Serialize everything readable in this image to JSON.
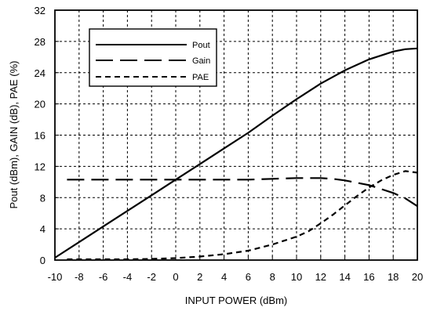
{
  "chart_data": {
    "type": "line",
    "title": "",
    "xlabel": "INPUT POWER (dBm)",
    "ylabel": "Pout (dBm), GAIN (dB), PAE (%)",
    "xlim": [
      -10,
      20
    ],
    "ylim": [
      0,
      32
    ],
    "xticks": [
      -10,
      -8,
      -6,
      -4,
      -2,
      0,
      2,
      4,
      6,
      8,
      10,
      12,
      14,
      16,
      18,
      20
    ],
    "yticks": [
      0,
      4,
      8,
      12,
      16,
      20,
      24,
      28,
      32
    ],
    "grid": true,
    "legend_position": "top-left",
    "series": [
      {
        "name": "Pout",
        "style": "solid",
        "x": [
          -10,
          -8,
          -6,
          -4,
          -2,
          0,
          2,
          4,
          6,
          8,
          10,
          12,
          14,
          15,
          16,
          17,
          18,
          19,
          20
        ],
        "y": [
          0.3,
          2.3,
          4.3,
          6.3,
          8.3,
          10.3,
          12.3,
          14.3,
          16.3,
          18.5,
          20.6,
          22.6,
          24.3,
          25.0,
          25.7,
          26.2,
          26.7,
          27.0,
          27.1
        ]
      },
      {
        "name": "Gain",
        "style": "long-dash",
        "x": [
          -9,
          -8,
          -6,
          -4,
          -2,
          0,
          2,
          4,
          6,
          8,
          10,
          12,
          13,
          14,
          15,
          16,
          17,
          18,
          19,
          20
        ],
        "y": [
          10.3,
          10.3,
          10.3,
          10.3,
          10.3,
          10.3,
          10.3,
          10.3,
          10.3,
          10.4,
          10.5,
          10.5,
          10.4,
          10.2,
          9.9,
          9.6,
          9.1,
          8.6,
          7.9,
          6.9
        ]
      },
      {
        "name": "PAE",
        "style": "short-dash",
        "x": [
          -9,
          -8,
          -6,
          -4,
          -2,
          0,
          2,
          4,
          6,
          8,
          10,
          11,
          12,
          13,
          14,
          15,
          16,
          17,
          18,
          19,
          20
        ],
        "y": [
          0.1,
          0.1,
          0.1,
          0.1,
          0.15,
          0.25,
          0.45,
          0.75,
          1.2,
          2.0,
          3.0,
          3.7,
          4.7,
          5.8,
          7.0,
          8.2,
          9.3,
          10.2,
          10.9,
          11.4,
          11.2
        ]
      }
    ]
  }
}
